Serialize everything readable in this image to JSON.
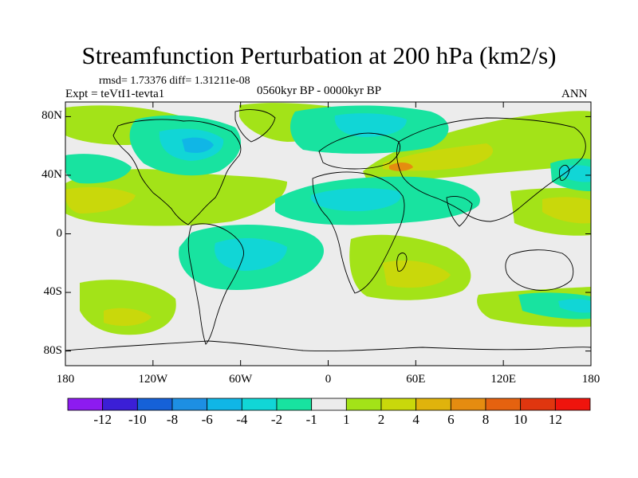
{
  "title": "Streamfunction Perturbation at 200 hPa (km2/s)",
  "stats_line": "rmsd= 1.73376 diff= 1.31211e-08",
  "experiment_line": "Expt = teVtI1-tevta1",
  "period_line": "0560kyr BP - 0000kyr BP",
  "season": "ANN",
  "axes": {
    "y_ticks": [
      {
        "label": "80N",
        "lat": 80
      },
      {
        "label": "40N",
        "lat": 40
      },
      {
        "label": "0",
        "lat": 0
      },
      {
        "label": "40S",
        "lat": -40
      },
      {
        "label": "80S",
        "lat": -80
      }
    ],
    "x_ticks": [
      {
        "label": "180",
        "lon": -180
      },
      {
        "label": "120W",
        "lon": -120
      },
      {
        "label": "60W",
        "lon": -60
      },
      {
        "label": "0",
        "lon": 0
      },
      {
        "label": "60E",
        "lon": 60
      },
      {
        "label": "120E",
        "lon": 120
      },
      {
        "label": "180",
        "lon": 180
      }
    ],
    "lat_range": [
      -90,
      90
    ],
    "lon_range": [
      -180,
      180
    ]
  },
  "colorbar": {
    "colors": [
      "#8d1bf0",
      "#3b1fd6",
      "#1561d8",
      "#1d8fe3",
      "#10b6e6",
      "#11d6d6",
      "#18e3a0",
      "#ececec",
      "#a3e318",
      "#c9d80b",
      "#e0b30c",
      "#e58c10",
      "#e5620f",
      "#e0360f",
      "#ef140d"
    ],
    "labels": [
      "-12",
      "-10",
      "-8",
      "-6",
      "-4",
      "-2",
      "-1",
      "1",
      "2",
      "4",
      "6",
      "8",
      "10",
      "12"
    ]
  },
  "field_colors": {
    "neg_weak": "#18e3a0",
    "neg_mid": "#11d6d6",
    "neg_strong": "#10b6e6",
    "neutral": "#ececec",
    "pos_weak": "#a3e318",
    "pos_mid": "#c9d80b",
    "pos_strong": "#e0b30c",
    "pos_max": "#e58c10"
  }
}
